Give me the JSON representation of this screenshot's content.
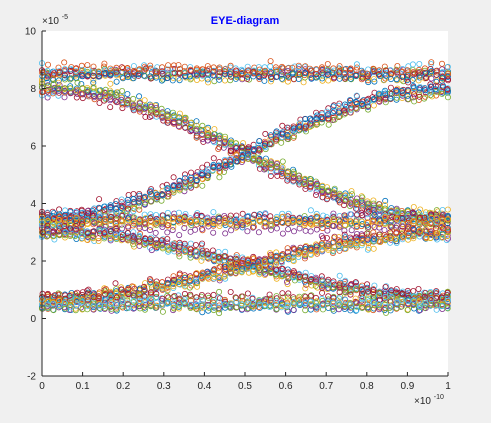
{
  "chart_data": {
    "type": "scatter",
    "title": "EYE-diagram",
    "title_color": "#0000ff",
    "xlabel": "",
    "ylabel": "",
    "xlim": [
      0,
      1e-10
    ],
    "ylim": [
      -2e-05,
      0.0001
    ],
    "x_ticks": [
      "0",
      "0.1",
      "0.2",
      "0.3",
      "0.4",
      "0.5",
      "0.6",
      "0.7",
      "0.8",
      "0.9",
      "1"
    ],
    "y_ticks": [
      "-2",
      "0",
      "2",
      "4",
      "6",
      "8",
      "10"
    ],
    "x_exponent": "×10",
    "x_exponent_power": "-10",
    "y_exponent": "×10",
    "y_exponent_power": "-5",
    "grid": false,
    "marker": "open-circle",
    "trace_colors": [
      "#0072bd",
      "#d95319",
      "#edb120",
      "#7e2f8e",
      "#77ac30",
      "#4dbeee",
      "#a2142f"
    ],
    "eye_levels": [
      {
        "level": 8.2e-05,
        "spread": 5e-06
      },
      {
        "level": 3.2e-05,
        "spread": 5e-06
      },
      {
        "level": 7e-06,
        "spread": 4e-06
      }
    ],
    "crossing_points_x": [
      4.7e-11
    ],
    "x_sample_range": [
      0,
      1e-10
    ],
    "series": [
      {
        "values_start": 8.5e-05,
        "values_end": 8.5e-05
      },
      {
        "values_start": 8e-05,
        "values_end": 3.5e-05
      },
      {
        "values_start": 3.5e-05,
        "values_end": 8e-05
      },
      {
        "values_start": 3.3e-05,
        "values_end": 3.3e-05
      },
      {
        "values_start": 3e-05,
        "values_end": 7e-06
      },
      {
        "values_start": 7e-06,
        "values_end": 3e-05
      },
      {
        "values_start": 6e-06,
        "values_end": 6e-06
      }
    ]
  }
}
